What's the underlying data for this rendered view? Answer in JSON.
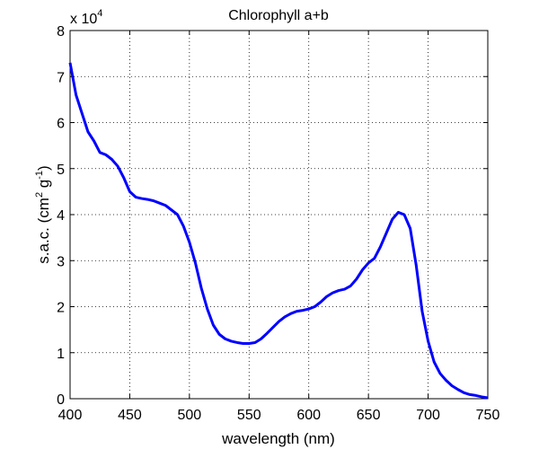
{
  "chart_data": {
    "type": "line",
    "title": "Chlorophyll a+b",
    "xlabel": "wavelength (nm)",
    "ylabel_parts": [
      "s.a.c. (cm",
      "2",
      " g",
      "-1",
      ")"
    ],
    "y_multiplier_parts": [
      "x 10",
      "4"
    ],
    "x": [
      400,
      405,
      410,
      415,
      420,
      425,
      430,
      435,
      440,
      445,
      450,
      455,
      460,
      465,
      470,
      475,
      480,
      485,
      490,
      495,
      500,
      505,
      510,
      515,
      520,
      525,
      530,
      535,
      540,
      545,
      550,
      555,
      560,
      565,
      570,
      575,
      580,
      585,
      590,
      595,
      600,
      605,
      610,
      615,
      620,
      625,
      630,
      635,
      640,
      645,
      650,
      655,
      660,
      665,
      670,
      675,
      680,
      685,
      690,
      695,
      700,
      705,
      710,
      715,
      720,
      725,
      730,
      735,
      740,
      745,
      750
    ],
    "series": [
      {
        "name": "Chlorophyll a+b",
        "color": "#0000ff",
        "values": [
          7.3,
          6.6,
          6.2,
          5.8,
          5.6,
          5.35,
          5.3,
          5.2,
          5.05,
          4.8,
          4.5,
          4.38,
          4.35,
          4.33,
          4.3,
          4.25,
          4.2,
          4.1,
          4.0,
          3.75,
          3.4,
          2.95,
          2.4,
          1.95,
          1.6,
          1.4,
          1.3,
          1.25,
          1.22,
          1.2,
          1.2,
          1.22,
          1.3,
          1.42,
          1.55,
          1.68,
          1.78,
          1.85,
          1.9,
          1.92,
          1.95,
          2.0,
          2.1,
          2.22,
          2.3,
          2.35,
          2.38,
          2.45,
          2.6,
          2.8,
          2.95,
          3.05,
          3.3,
          3.6,
          3.9,
          4.05,
          4.0,
          3.7,
          2.9,
          1.9,
          1.25,
          0.8,
          0.55,
          0.4,
          0.28,
          0.2,
          0.13,
          0.09,
          0.07,
          0.04,
          0.02
        ]
      }
    ],
    "xlim": [
      400,
      750
    ],
    "xticks": [
      400,
      450,
      500,
      550,
      600,
      650,
      700,
      750
    ],
    "ylim": [
      0,
      8
    ],
    "yticks": [
      0,
      1,
      2,
      3,
      4,
      5,
      6,
      7,
      8
    ],
    "grid": true
  }
}
